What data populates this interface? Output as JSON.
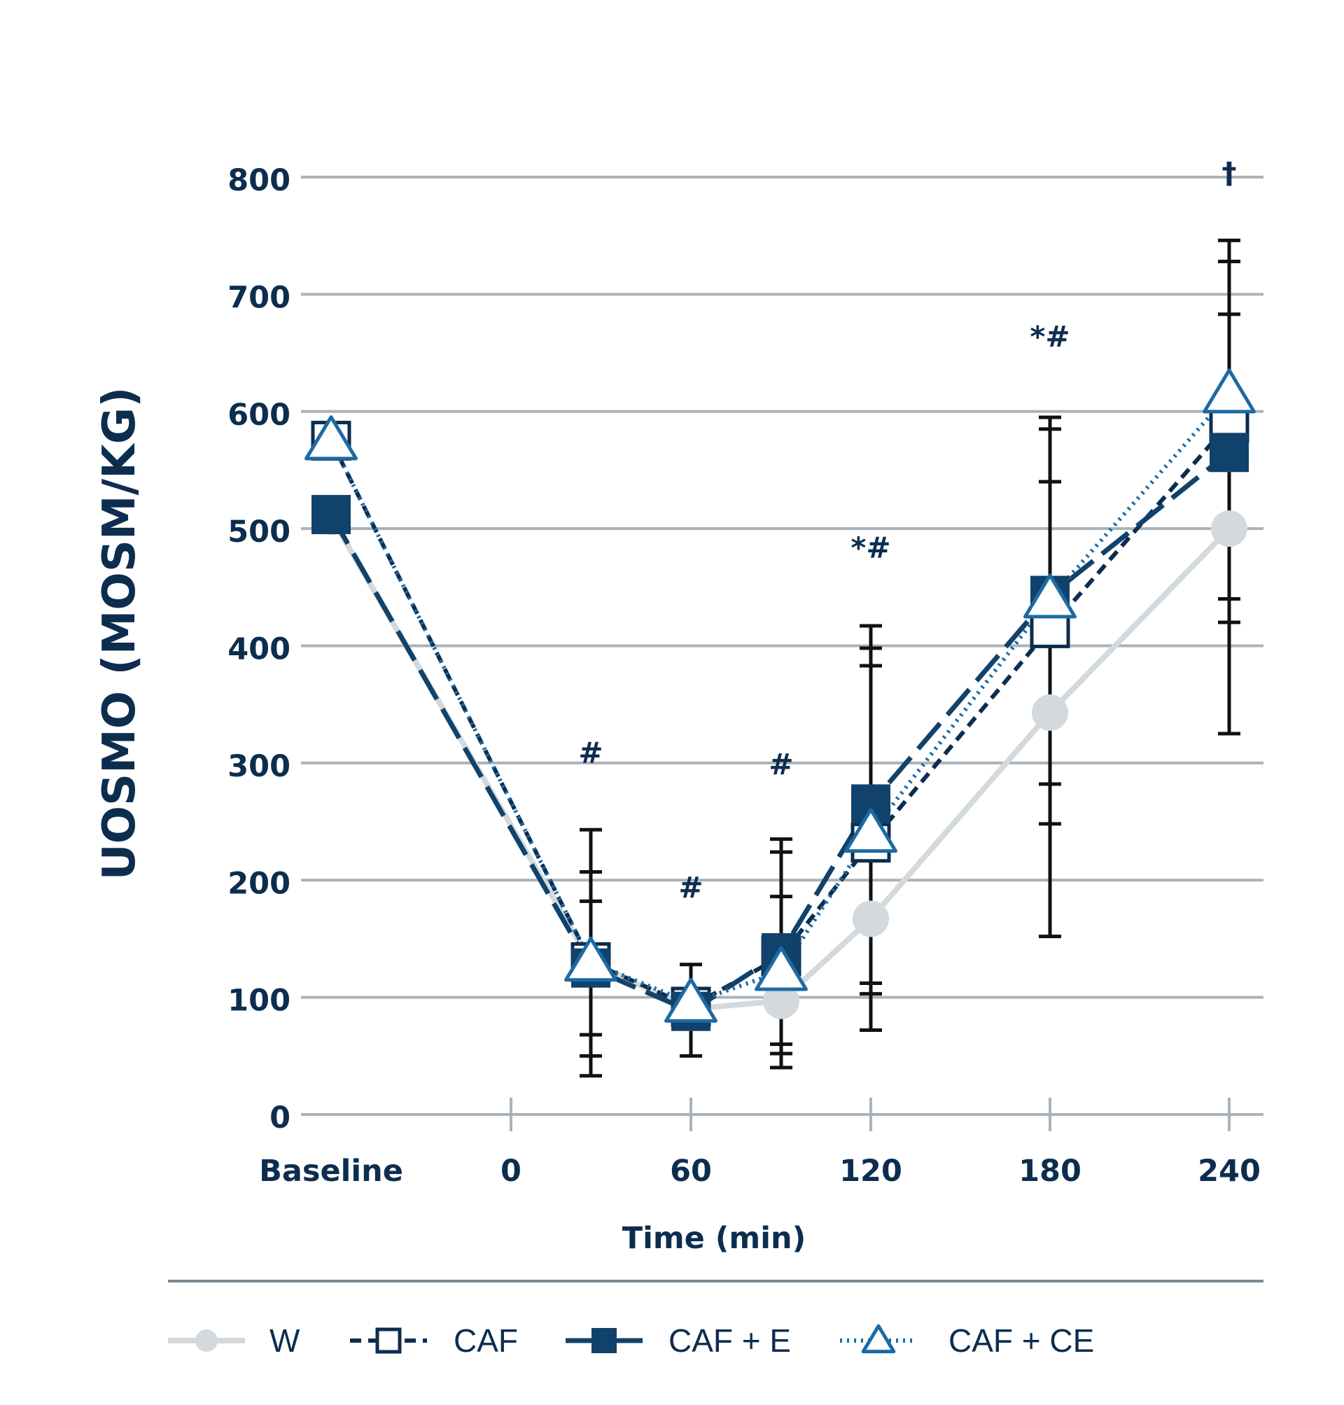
{
  "chart_data": {
    "type": "line",
    "title": "",
    "xlabel": "Time (min)",
    "ylabel": "UOSMO (MOSM/KG)",
    "ylim": [
      0,
      800
    ],
    "yticks": [
      0,
      100,
      200,
      300,
      400,
      500,
      600,
      700,
      800
    ],
    "categories": [
      "Baseline",
      "0",
      "30",
      "60",
      "90",
      "120",
      "180",
      "240"
    ],
    "xtick_labels": [
      "Baseline",
      "0",
      "60",
      "120",
      "180",
      "240"
    ],
    "grid": true,
    "legend_position": "bottom",
    "series": [
      {
        "name": "W",
        "style": "solid",
        "marker": "circle",
        "color": "#d3d9dd",
        "points": [
          {
            "x": "Baseline",
            "y": 510
          },
          {
            "x": "30",
            "y": 130
          },
          {
            "x": "60",
            "y": 90
          },
          {
            "x": "90",
            "y": 97
          },
          {
            "x": "120",
            "y": 167
          },
          {
            "x": "180",
            "y": 343
          },
          {
            "x": "240",
            "y": 500
          }
        ]
      },
      {
        "name": "CAF",
        "style": "dashed",
        "marker": "open-square",
        "color": "#0d2d4f",
        "points": [
          {
            "x": "Baseline",
            "y": 575
          },
          {
            "x": "30",
            "y": 130
          },
          {
            "x": "60",
            "y": 92
          },
          {
            "x": "90",
            "y": 135
          },
          {
            "x": "120",
            "y": 232
          },
          {
            "x": "180",
            "y": 415
          },
          {
            "x": "240",
            "y": 590
          }
        ]
      },
      {
        "name": "CAF + E",
        "style": "longdash",
        "marker": "filled-square",
        "color": "#10426b",
        "points": [
          {
            "x": "Baseline",
            "y": 512
          },
          {
            "x": "30",
            "y": 125
          },
          {
            "x": "60",
            "y": 88
          },
          {
            "x": "90",
            "y": 138
          },
          {
            "x": "120",
            "y": 265
          },
          {
            "x": "180",
            "y": 443
          },
          {
            "x": "240",
            "y": 565
          }
        ]
      },
      {
        "name": "CAF + CE",
        "style": "dotted",
        "marker": "open-triangle",
        "color": "#1c6aa3",
        "points": [
          {
            "x": "Baseline",
            "y": 575
          },
          {
            "x": "30",
            "y": 130
          },
          {
            "x": "60",
            "y": 95
          },
          {
            "x": "90",
            "y": 122
          },
          {
            "x": "120",
            "y": 240
          },
          {
            "x": "180",
            "y": 440
          },
          {
            "x": "240",
            "y": 615
          }
        ]
      }
    ],
    "error_bars": [
      {
        "x": "30",
        "caps": [
          33,
          50,
          68,
          182,
          207,
          243
        ]
      },
      {
        "x": "60",
        "caps": [
          50,
          128
        ]
      },
      {
        "x": "90",
        "caps": [
          40,
          52,
          60,
          186,
          224,
          235
        ]
      },
      {
        "x": "120",
        "caps": [
          72,
          103,
          112,
          383,
          398,
          417
        ]
      },
      {
        "x": "180",
        "caps": [
          152,
          248,
          282,
          540,
          585,
          595
        ]
      },
      {
        "x": "240",
        "caps": [
          325,
          420,
          440,
          683,
          728,
          746
        ]
      }
    ],
    "annotations": [
      {
        "x": "30",
        "y": 300,
        "text": "#"
      },
      {
        "x": "60",
        "y": 185,
        "text": "#"
      },
      {
        "x": "90",
        "y": 290,
        "text": "#"
      },
      {
        "x": "120",
        "y": 475,
        "text": "*#"
      },
      {
        "x": "180",
        "y": 655,
        "text": "*#"
      },
      {
        "x": "240",
        "y": 795,
        "text": "†"
      }
    ]
  }
}
